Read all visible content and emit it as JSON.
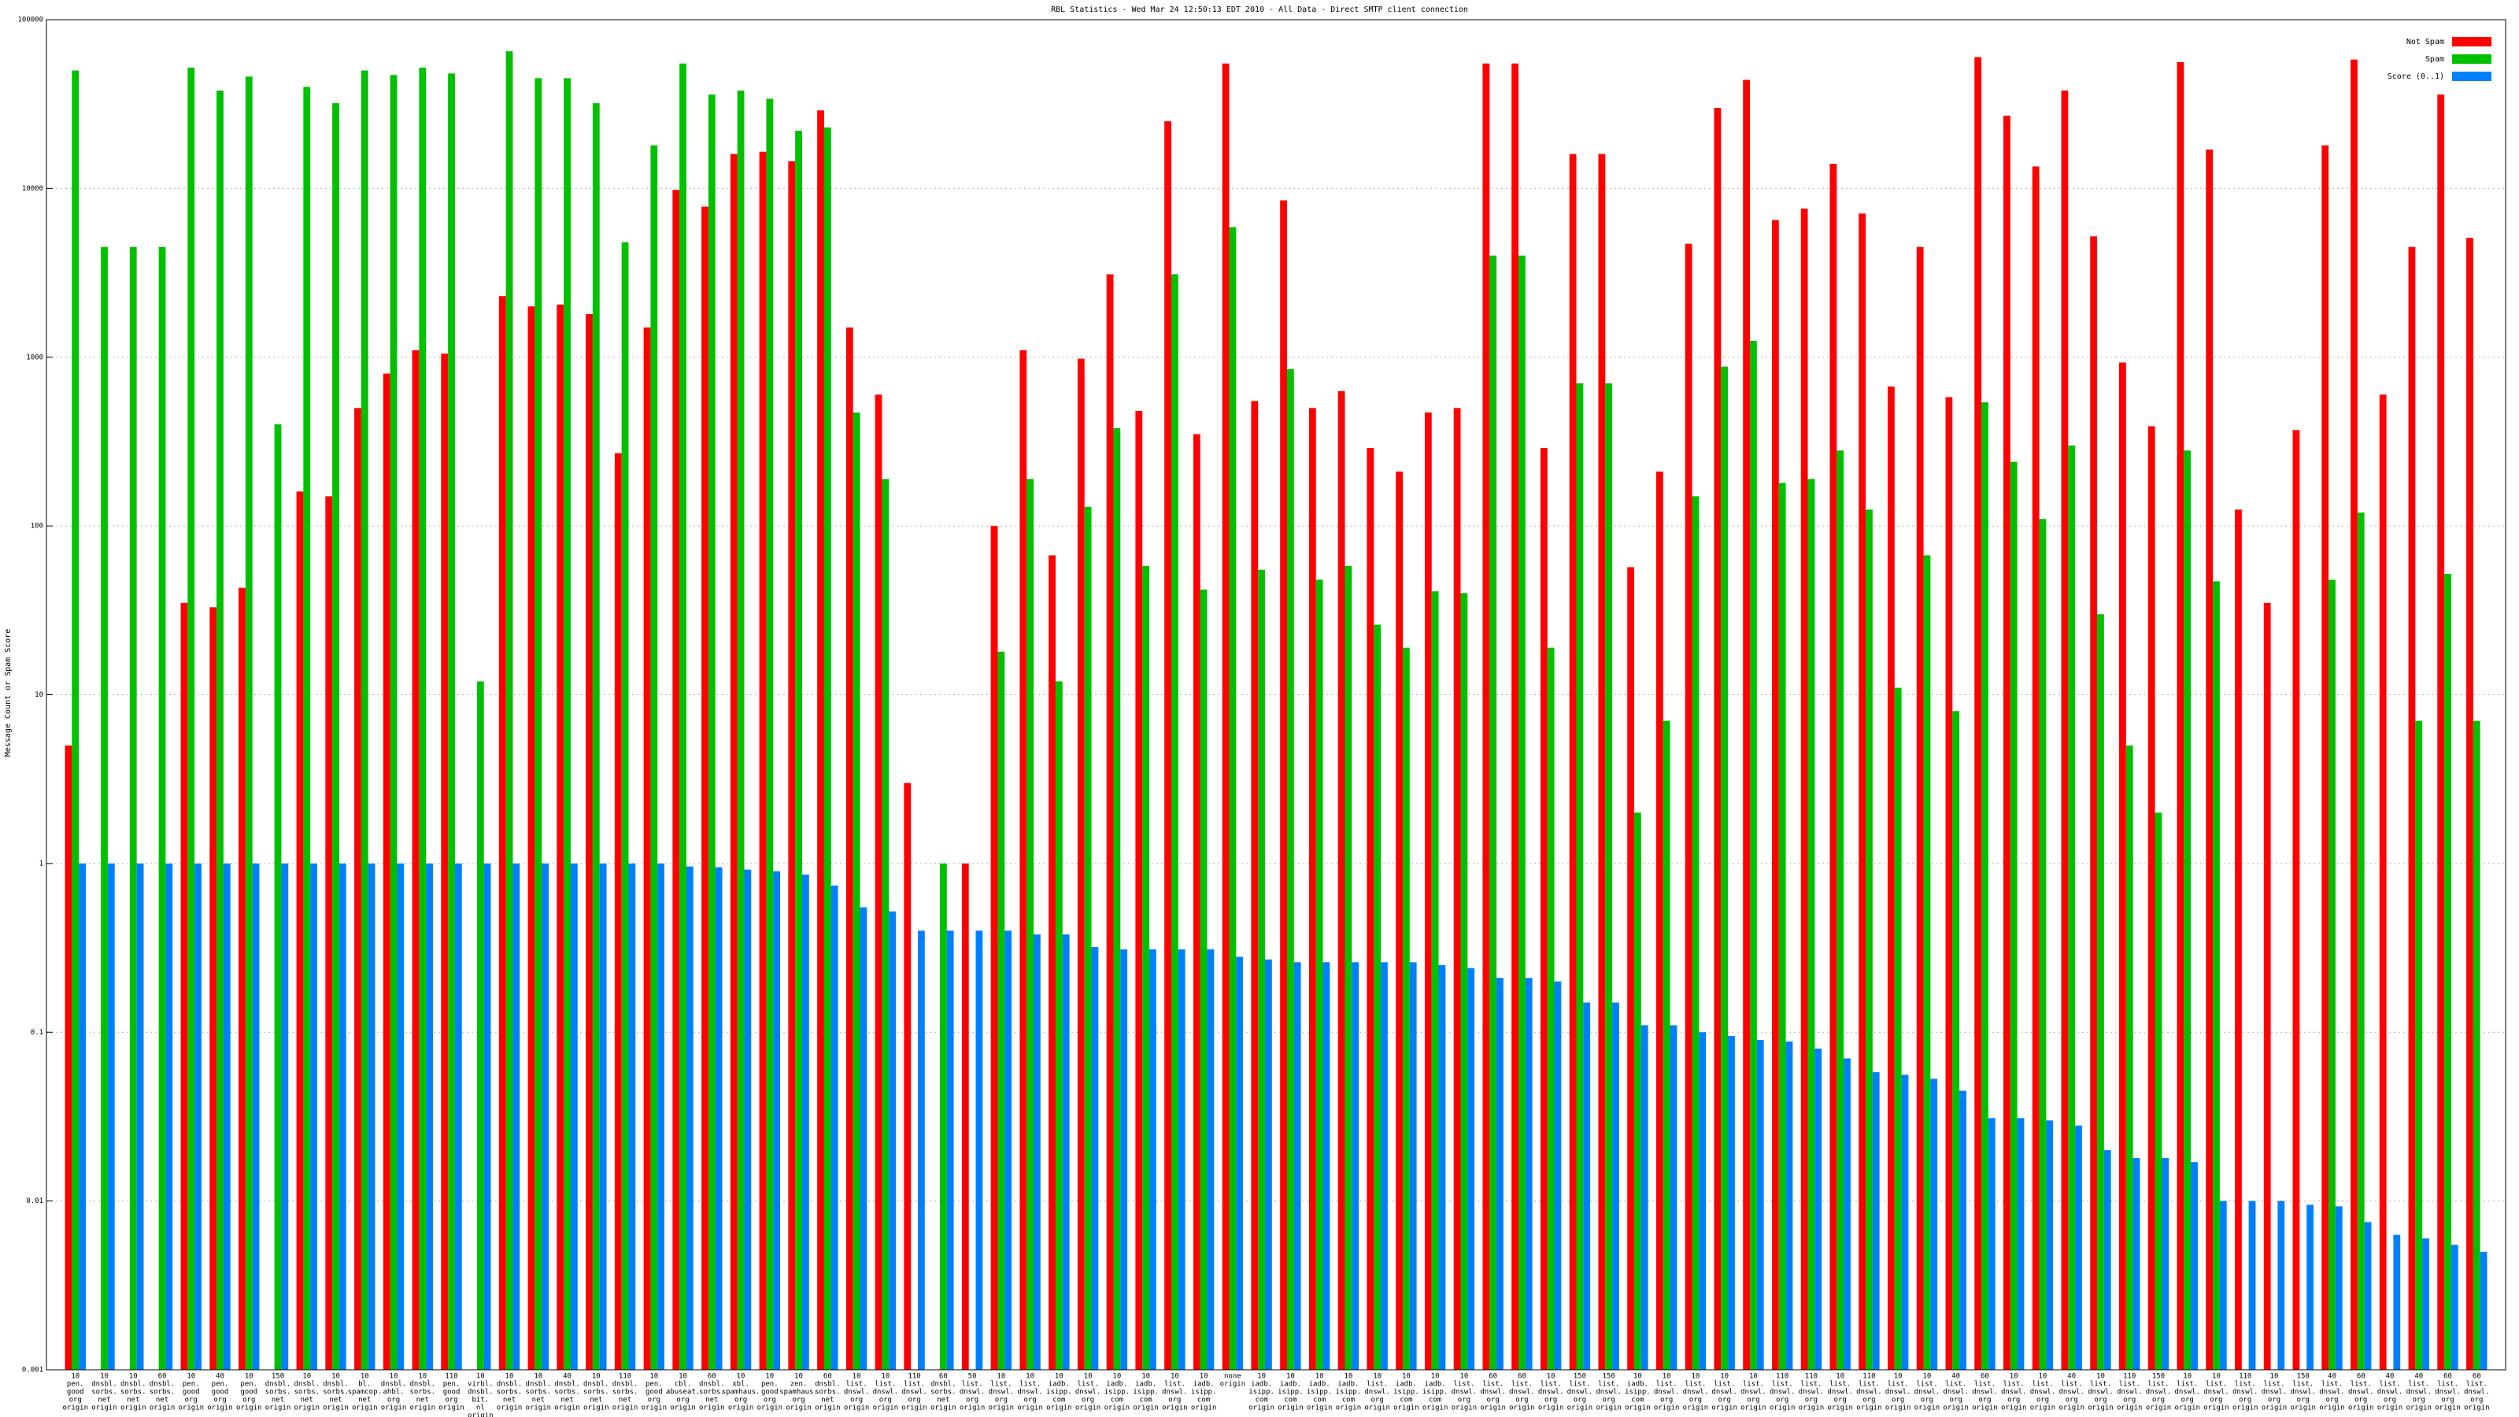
{
  "chart_data": {
    "type": "bar",
    "title": "RBL Statistics - Wed Mar 24 12:50:13 EDT 2010 - All Data - Direct SMTP client connection",
    "ylabel": "Message Count or Spam Score",
    "log_scale": true,
    "grid": true,
    "legend": "top-right",
    "ylim": [
      0.001,
      100000
    ],
    "yticks": [
      0.001,
      0.01,
      0.1,
      1,
      10,
      100,
      1000,
      10000,
      100000
    ],
    "categories": [
      [
        "10",
        "pen.",
        "good",
        "org",
        "origin"
      ],
      [
        "10",
        "dnsbl.",
        "sorbs.",
        "net",
        "origin"
      ],
      [
        "10",
        "dnsbl.",
        "sorbs.",
        "net",
        "origin"
      ],
      [
        "60",
        "dnsbl.",
        "sorbs.",
        "net",
        "origin"
      ],
      [
        "10",
        "pen.",
        "good",
        "org",
        "origin"
      ],
      [
        "40",
        "pen.",
        "good",
        "org",
        "origin"
      ],
      [
        "10",
        "pen.",
        "good",
        "org",
        "origin"
      ],
      [
        "150",
        "dnsbl.",
        "sorbs.",
        "net",
        "origin"
      ],
      [
        "10",
        "dnsbl.",
        "sorbs.",
        "net",
        "origin"
      ],
      [
        "10",
        "dnsbl.",
        "sorbs.",
        "net",
        "origin"
      ],
      [
        "10",
        "bl.",
        "spamcop.",
        "net",
        "origin"
      ],
      [
        "10",
        "dnsbl.",
        "ahbl.",
        "org",
        "origin"
      ],
      [
        "10",
        "dnsbl.",
        "sorbs.",
        "net",
        "origin"
      ],
      [
        "110",
        "pen.",
        "good",
        "org",
        "origin"
      ],
      [
        "10",
        "virbl.",
        "dnsbl.",
        "bit.",
        "nl",
        "origin"
      ],
      [
        "10",
        "dnsbl.",
        "sorbs.",
        "net",
        "origin"
      ],
      [
        "10",
        "dnsbl.",
        "sorbs.",
        "net",
        "origin"
      ],
      [
        "40",
        "dnsbl.",
        "sorbs.",
        "net",
        "origin"
      ],
      [
        "10",
        "dnsbl.",
        "sorbs.",
        "net",
        "origin"
      ],
      [
        "110",
        "dnsbl.",
        "sorbs.",
        "net",
        "origin"
      ],
      [
        "10",
        "pen.",
        "good",
        "org",
        "origin"
      ],
      [
        "10",
        "cbl.",
        "abuseat.",
        "org",
        "origin"
      ],
      [
        "60",
        "dnsbl.",
        "sorbs.",
        "net",
        "origin"
      ],
      [
        "10",
        "xbl.",
        "spamhaus.",
        "org",
        "origin"
      ],
      [
        "10",
        "pen.",
        "good",
        "org",
        "origin"
      ],
      [
        "10",
        "zen.",
        "spamhaus.",
        "org",
        "origin"
      ],
      [
        "60",
        "dnsbl.",
        "sorbs.",
        "net",
        "origin"
      ],
      [
        "10",
        "list.",
        "dnswl.",
        "org",
        "origin"
      ],
      [
        "10",
        "list.",
        "dnswl.",
        "org",
        "origin"
      ],
      [
        "110",
        "list.",
        "dnswl.",
        "org",
        "origin"
      ],
      [
        "60",
        "dnsbl.",
        "sorbs.",
        "net",
        "origin"
      ],
      [
        "50",
        "list.",
        "dnswl.",
        "org",
        "origin"
      ],
      [
        "10",
        "list.",
        "dnswl.",
        "org",
        "origin"
      ],
      [
        "10",
        "list.",
        "dnswl.",
        "org",
        "origin"
      ],
      [
        "10",
        "iadb.",
        "isipp.",
        "com",
        "origin"
      ],
      [
        "10",
        "list.",
        "dnswl.",
        "org",
        "origin"
      ],
      [
        "10",
        "iadb.",
        "isipp.",
        "com",
        "origin"
      ],
      [
        "10",
        "iadb.",
        "isipp.",
        "com",
        "origin"
      ],
      [
        "10",
        "list.",
        "dnswl.",
        "org",
        "origin"
      ],
      [
        "10",
        "iadb.",
        "isipp.",
        "com",
        "origin"
      ],
      [
        "none",
        "origin"
      ],
      [
        "10",
        "iadb.",
        "isipp.",
        "com",
        "origin"
      ],
      [
        "10",
        "iadb.",
        "isipp.",
        "com",
        "origin"
      ],
      [
        "10",
        "iadb.",
        "isipp.",
        "com",
        "origin"
      ],
      [
        "10",
        "iadb.",
        "isipp.",
        "com",
        "origin"
      ],
      [
        "10",
        "list.",
        "dnswl.",
        "org",
        "origin"
      ],
      [
        "10",
        "iadb.",
        "isipp.",
        "com",
        "origin"
      ],
      [
        "10",
        "iadb.",
        "isipp.",
        "com",
        "origin"
      ],
      [
        "10",
        "list.",
        "dnswl.",
        "org",
        "origin"
      ],
      [
        "60",
        "list.",
        "dnswl.",
        "org",
        "origin"
      ],
      [
        "60",
        "list.",
        "dnswl.",
        "org",
        "origin"
      ],
      [
        "10",
        "list.",
        "dnswl.",
        "org",
        "origin"
      ],
      [
        "150",
        "list.",
        "dnswl.",
        "org",
        "origin"
      ],
      [
        "150",
        "list.",
        "dnswl.",
        "org",
        "origin"
      ],
      [
        "10",
        "iadb.",
        "isipp.",
        "com",
        "origin"
      ],
      [
        "10",
        "list.",
        "dnswl.",
        "org",
        "origin"
      ],
      [
        "10",
        "list.",
        "dnswl.",
        "org",
        "origin"
      ],
      [
        "10",
        "list.",
        "dnswl.",
        "org",
        "origin"
      ],
      [
        "10",
        "list.",
        "dnswl.",
        "org",
        "origin"
      ],
      [
        "110",
        "list.",
        "dnswl.",
        "org",
        "origin"
      ],
      [
        "110",
        "list.",
        "dnswl.",
        "org",
        "origin"
      ],
      [
        "10",
        "list.",
        "dnswl.",
        "org",
        "origin"
      ],
      [
        "110",
        "list.",
        "dnswl.",
        "org",
        "origin"
      ],
      [
        "10",
        "list.",
        "dnswl.",
        "org",
        "origin"
      ],
      [
        "10",
        "list.",
        "dnswl.",
        "org",
        "origin"
      ],
      [
        "40",
        "list.",
        "dnswl.",
        "org",
        "origin"
      ],
      [
        "60",
        "list.",
        "dnswl.",
        "org",
        "origin"
      ],
      [
        "10",
        "list.",
        "dnswl.",
        "org",
        "origin"
      ],
      [
        "10",
        "list.",
        "dnswl.",
        "org",
        "origin"
      ],
      [
        "40",
        "list.",
        "dnswl.",
        "org",
        "origin"
      ],
      [
        "10",
        "list.",
        "dnswl.",
        "org",
        "origin"
      ],
      [
        "110",
        "list.",
        "dnswl.",
        "org",
        "origin"
      ],
      [
        "150",
        "list.",
        "dnswl.",
        "org",
        "origin"
      ],
      [
        "10",
        "list.",
        "dnswl.",
        "org",
        "origin"
      ],
      [
        "10",
        "list.",
        "dnswl.",
        "org",
        "origin"
      ],
      [
        "110",
        "list.",
        "dnswl.",
        "org",
        "origin"
      ],
      [
        "10",
        "list.",
        "dnswl.",
        "org",
        "origin"
      ],
      [
        "150",
        "list.",
        "dnswl.",
        "org",
        "origin"
      ],
      [
        "40",
        "list.",
        "dnswl.",
        "org",
        "origin"
      ],
      [
        "60",
        "list.",
        "dnswl.",
        "org",
        "origin"
      ],
      [
        "40",
        "list.",
        "dnswl.",
        "org",
        "origin"
      ],
      [
        "40",
        "list.",
        "dnswl.",
        "org",
        "origin"
      ],
      [
        "60",
        "list.",
        "dnswl.",
        "org",
        "origin"
      ],
      [
        "60",
        "list.",
        "dnswl.",
        "org",
        "origin"
      ]
    ],
    "series": [
      {
        "name": "Not Spam",
        "color": "#ff0000",
        "values": [
          5,
          null,
          null,
          null,
          35,
          33,
          43,
          null,
          160,
          150,
          500,
          800,
          1100,
          1050,
          null,
          2300,
          2000,
          2050,
          1800,
          270,
          1500,
          9800,
          7800,
          16000,
          16500,
          14500,
          29000,
          1500,
          600,
          3,
          null,
          1,
          100,
          1100,
          67,
          980,
          3100,
          480,
          25000,
          350,
          55000,
          550,
          8500,
          500,
          630,
          290,
          210,
          470,
          500,
          55000,
          55000,
          290,
          16000,
          16000,
          57,
          210,
          4700,
          30000,
          44000,
          6500,
          7600,
          14000,
          7100,
          670,
          4500,
          580,
          60000,
          27000,
          13500,
          38000,
          5200,
          930,
          390,
          56000,
          17000,
          125,
          35,
          370,
          18000,
          58000,
          600,
          4500,
          36000,
          5100
        ]
      },
      {
        "name": "Spam",
        "color": "#00c000",
        "values": [
          50000,
          4500,
          4500,
          4500,
          52000,
          38000,
          46000,
          400,
          40000,
          32000,
          50000,
          47000,
          52000,
          48000,
          12,
          65000,
          45000,
          45000,
          32000,
          4800,
          18000,
          55000,
          36000,
          38000,
          34000,
          22000,
          23000,
          470,
          190,
          null,
          1,
          null,
          18,
          190,
          12,
          130,
          380,
          58,
          3100,
          42,
          5900,
          55,
          850,
          48,
          58,
          26,
          19,
          41,
          40,
          4000,
          4000,
          19,
          700,
          700,
          2,
          7,
          150,
          880,
          1250,
          180,
          190,
          280,
          125,
          11,
          67,
          8,
          540,
          240,
          110,
          300,
          30,
          5,
          2,
          280,
          47,
          null,
          null,
          null,
          48,
          120,
          null,
          7,
          52,
          7
        ]
      },
      {
        "name": "Score (0..1)",
        "color": "#0080ff",
        "values": [
          1,
          1,
          1,
          1,
          1,
          1,
          1,
          1,
          1,
          1,
          1,
          1,
          1,
          1,
          1,
          1,
          1,
          1,
          1,
          1,
          1,
          0.96,
          0.95,
          0.92,
          0.9,
          0.86,
          0.74,
          0.55,
          0.52,
          0.4,
          0.4,
          0.4,
          0.4,
          0.38,
          0.38,
          0.32,
          0.31,
          0.31,
          0.31,
          0.31,
          0.28,
          0.27,
          0.26,
          0.26,
          0.26,
          0.26,
          0.26,
          0.25,
          0.24,
          0.21,
          0.21,
          0.2,
          0.15,
          0.15,
          0.11,
          0.11,
          0.1,
          0.095,
          0.09,
          0.088,
          0.08,
          0.07,
          0.058,
          0.056,
          0.053,
          0.045,
          0.031,
          0.031,
          0.03,
          0.028,
          0.02,
          0.018,
          0.018,
          0.017,
          0.01,
          0.01,
          0.01,
          0.0095,
          0.0093,
          0.0075,
          0.0063,
          0.006,
          0.0055,
          0.005
        ]
      }
    ]
  }
}
